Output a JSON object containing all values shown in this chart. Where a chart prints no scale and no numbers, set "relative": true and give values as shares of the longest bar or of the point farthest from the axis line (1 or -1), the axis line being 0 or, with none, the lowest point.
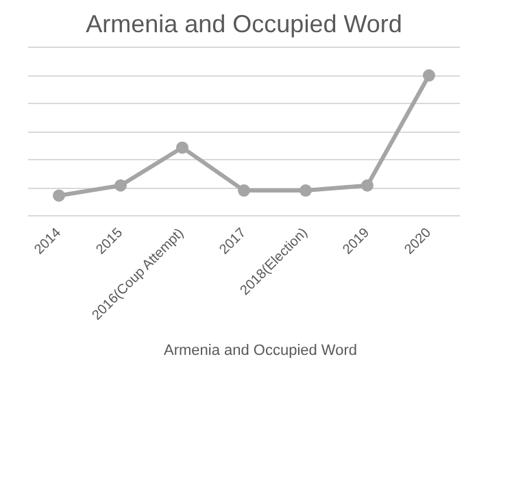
{
  "chart_data": {
    "type": "line",
    "title": "Armenia and Occupied Word",
    "relative": true,
    "categories": [
      "2014",
      "2015",
      "2016(Coup Attempt)",
      "2017",
      "2018(Election)",
      "2019",
      "2020"
    ],
    "series": [
      {
        "name": "Armenia and Occupied Word",
        "color": "#a5a5a5",
        "values": [
          0.144,
          0.216,
          0.486,
          0.18,
          0.18,
          0.216,
          1
        ]
      }
    ],
    "marker": "circle",
    "line_style": "solid",
    "grid": "y",
    "legend": "bottom"
  }
}
